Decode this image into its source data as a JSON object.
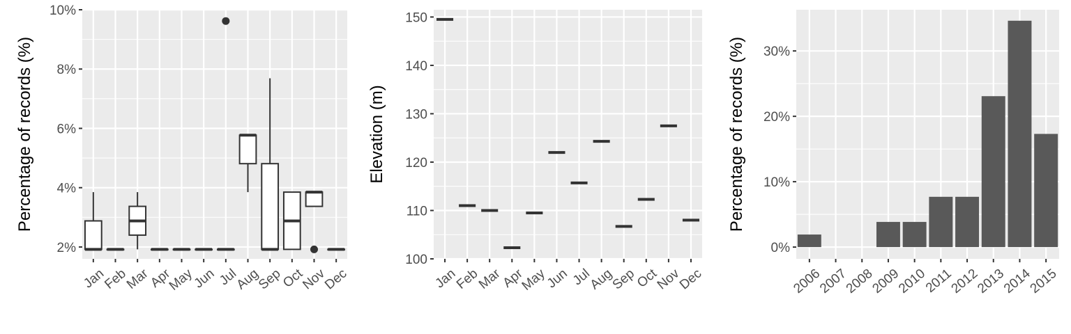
{
  "chart_data": [
    {
      "type": "box",
      "ylabel": "Percentage of records (%)",
      "y_unit": "%",
      "ylim": [
        1.6,
        10
      ],
      "yticks": [
        2,
        4,
        6,
        8,
        10
      ],
      "ytick_labels": [
        "2%",
        "4%",
        "6%",
        "8%",
        "10%"
      ],
      "grid": true,
      "categories": [
        "Jan",
        "Feb",
        "Mar",
        "Apr",
        "May",
        "Jun",
        "Jul",
        "Aug",
        "Sep",
        "Oct",
        "Nov",
        "Dec"
      ],
      "boxes": [
        {
          "min": 1.92,
          "q1": 1.92,
          "median": 1.92,
          "q3": 2.88,
          "max": 3.85,
          "outliers": []
        },
        {
          "min": 1.92,
          "q1": 1.92,
          "median": 1.92,
          "q3": 1.92,
          "max": 1.92,
          "outliers": []
        },
        {
          "min": 1.92,
          "q1": 2.4,
          "median": 2.88,
          "q3": 3.37,
          "max": 3.85,
          "outliers": []
        },
        {
          "min": 1.92,
          "q1": 1.92,
          "median": 1.92,
          "q3": 1.92,
          "max": 1.92,
          "outliers": []
        },
        {
          "min": 1.92,
          "q1": 1.92,
          "median": 1.92,
          "q3": 1.92,
          "max": 1.92,
          "outliers": []
        },
        {
          "min": 1.92,
          "q1": 1.92,
          "median": 1.92,
          "q3": 1.92,
          "max": 1.92,
          "outliers": []
        },
        {
          "min": 1.92,
          "q1": 1.92,
          "median": 1.92,
          "q3": 1.92,
          "max": 1.92,
          "outliers": [
            9.62
          ]
        },
        {
          "min": 3.85,
          "q1": 4.81,
          "median": 5.77,
          "q3": 5.77,
          "max": 5.77,
          "outliers": []
        },
        {
          "min": 1.92,
          "q1": 1.92,
          "median": 1.92,
          "q3": 4.81,
          "max": 7.69,
          "outliers": []
        },
        {
          "min": 1.92,
          "q1": 1.92,
          "median": 2.88,
          "q3": 3.85,
          "max": 3.85,
          "outliers": []
        },
        {
          "min": 3.37,
          "q1": 3.37,
          "median": 3.85,
          "q3": 3.85,
          "max": 3.85,
          "outliers": [
            1.92
          ]
        },
        {
          "min": 1.92,
          "q1": 1.92,
          "median": 1.92,
          "q3": 1.92,
          "max": 1.92,
          "outliers": []
        }
      ]
    },
    {
      "type": "point-range",
      "ylabel": "Elevation (m)",
      "ylim": [
        100,
        151.5
      ],
      "yticks": [
        100,
        110,
        120,
        130,
        140,
        150
      ],
      "ytick_labels": [
        "100",
        "110",
        "120",
        "130",
        "140",
        "150"
      ],
      "grid": true,
      "categories": [
        "Jan",
        "Feb",
        "Mar",
        "Apr",
        "May",
        "Jun",
        "Jul",
        "Aug",
        "Sep",
        "Oct",
        "Nov",
        "Dec"
      ],
      "values": [
        149.5,
        111,
        110,
        102.3,
        109.5,
        122,
        115.7,
        124.3,
        106.7,
        112.3,
        127.5,
        108
      ]
    },
    {
      "type": "bar",
      "ylabel": "Percentage of records (%)",
      "y_unit": "%",
      "ylim": [
        -1.8,
        36.3
      ],
      "yticks": [
        0,
        10,
        20,
        30
      ],
      "ytick_labels": [
        "0%",
        "10%",
        "20%",
        "30%"
      ],
      "grid": true,
      "categories": [
        "2006",
        "2007",
        "2008",
        "2009",
        "2010",
        "2011",
        "2012",
        "2013",
        "2014",
        "2015"
      ],
      "values": [
        1.92,
        0,
        0,
        3.85,
        3.85,
        7.69,
        7.69,
        23.08,
        34.62,
        17.31
      ],
      "bar_color": "#595959"
    }
  ]
}
